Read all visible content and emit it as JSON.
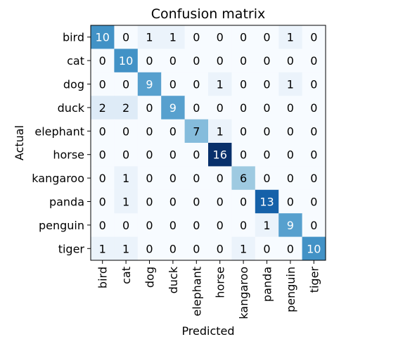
{
  "chart_data": {
    "type": "heatmap",
    "title": "Confusion matrix",
    "xlabel": "Predicted",
    "ylabel": "Actual",
    "x_categories": [
      "bird",
      "cat",
      "dog",
      "duck",
      "elephant",
      "horse",
      "kangaroo",
      "panda",
      "penguin",
      "tiger"
    ],
    "y_categories": [
      "bird",
      "cat",
      "dog",
      "duck",
      "elephant",
      "horse",
      "kangaroo",
      "panda",
      "penguin",
      "tiger"
    ],
    "values": [
      [
        10,
        0,
        1,
        1,
        0,
        0,
        0,
        0,
        1,
        0
      ],
      [
        0,
        10,
        0,
        0,
        0,
        0,
        0,
        0,
        0,
        0
      ],
      [
        0,
        0,
        9,
        0,
        0,
        1,
        0,
        0,
        1,
        0
      ],
      [
        2,
        2,
        0,
        9,
        0,
        0,
        0,
        0,
        0,
        0
      ],
      [
        0,
        0,
        0,
        0,
        7,
        1,
        0,
        0,
        0,
        0
      ],
      [
        0,
        0,
        0,
        0,
        0,
        16,
        0,
        0,
        0,
        0
      ],
      [
        0,
        1,
        0,
        0,
        0,
        0,
        6,
        0,
        0,
        0
      ],
      [
        0,
        1,
        0,
        0,
        0,
        0,
        0,
        13,
        0,
        0
      ],
      [
        0,
        0,
        0,
        0,
        0,
        0,
        0,
        1,
        9,
        0
      ],
      [
        1,
        1,
        0,
        0,
        0,
        0,
        1,
        0,
        0,
        10
      ]
    ],
    "colormap": "Blues",
    "value_range": [
      0,
      16
    ],
    "grid": false,
    "legend": "none"
  }
}
